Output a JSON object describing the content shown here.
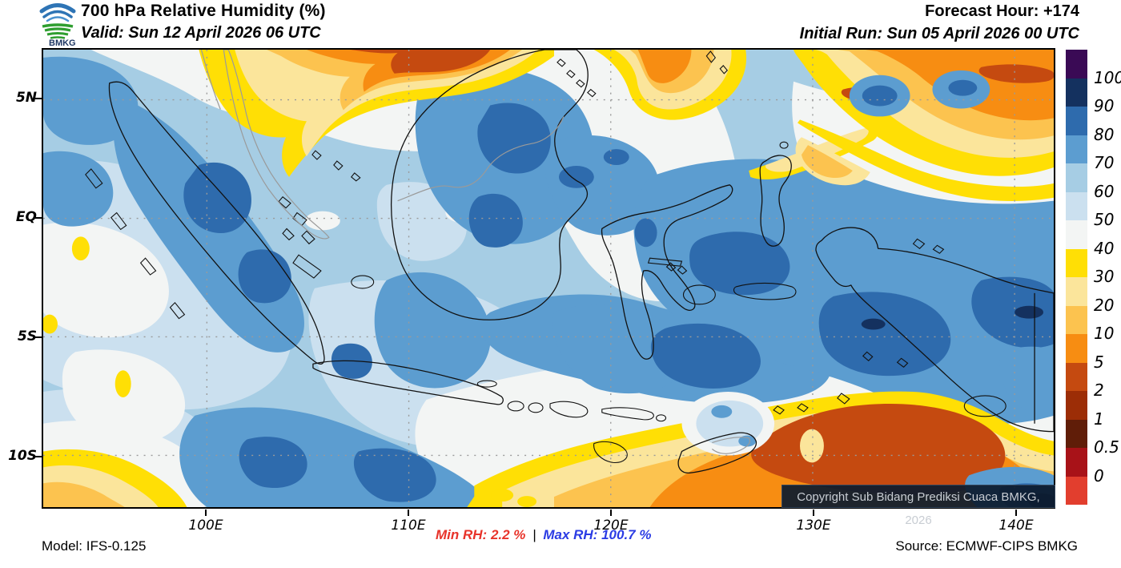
{
  "header": {
    "logo_text": "BMKG",
    "title": "700 hPa Relative Humidity (%)",
    "valid": "Valid: Sun 12 April 2026 06 UTC",
    "forecast_hour": "Forecast Hour: +174",
    "initial_run": "Initial Run: Sun 05 April 2026 00 UTC"
  },
  "map": {
    "copyright": "Copyright Sub Bidang Prediksi Cuaca BMKG, 2026"
  },
  "axes": {
    "x": [
      "100E",
      "110E",
      "120E",
      "130E",
      "140E"
    ],
    "y": [
      "5N",
      "EQ",
      "5S",
      "10S"
    ]
  },
  "colorbar": {
    "labels": [
      "100",
      "90",
      "80",
      "70",
      "60",
      "50",
      "40",
      "30",
      "20",
      "10",
      "5",
      "2",
      "1",
      "0.5",
      "0"
    ],
    "colors": [
      "#3A0A55",
      "#14315F",
      "#2E6BAD",
      "#5C9DD0",
      "#A6CDE4",
      "#CBE0EF",
      "#F3F5F4",
      "#FFDF05",
      "#FBE59B",
      "#FCC34F",
      "#F78D12",
      "#C54A10",
      "#9C2D06",
      "#601D08",
      "#A81218",
      "#E23E2E"
    ]
  },
  "footer": {
    "model": "Model: IFS-0.125",
    "min_label": "Min RH:",
    "min_value": "2.2 %",
    "separator": "|",
    "max_label": "Max RH:",
    "max_value": "100.7 %",
    "source": "Source: ECMWF-CIPS BMKG"
  },
  "chart_data": {
    "type": "heatmap",
    "title": "700 hPa Relative Humidity (%)",
    "valid_time": "Sun 12 April 2026 06 UTC",
    "forecast_hour": "+174",
    "initial_run": "Sun 05 April 2026 00 UTC",
    "model": "IFS-0.125",
    "source": "ECMWF-CIPS BMKG",
    "min_rh_percent": 2.2,
    "max_rh_percent": 100.7,
    "region": "Indonesia",
    "x_axis": {
      "label": "longitude",
      "ticks": [
        "100E",
        "110E",
        "120E",
        "130E",
        "140E"
      ],
      "range": [
        "92E",
        "142E"
      ]
    },
    "y_axis": {
      "label": "latitude",
      "ticks": [
        "5N",
        "EQ",
        "5S",
        "10S"
      ],
      "range": [
        "12S",
        "7N"
      ]
    },
    "grid": true,
    "legend_position": "right",
    "colorbar_levels_percent": [
      0,
      0.5,
      1,
      2,
      5,
      10,
      20,
      30,
      40,
      50,
      60,
      70,
      80,
      90,
      100
    ],
    "colorbar_colors": [
      "#E23E2E",
      "#A81218",
      "#601D08",
      "#9C2D06",
      "#C54A10",
      "#F78D12",
      "#FCC34F",
      "#FBE59B",
      "#FFDF05",
      "#F3F5F4",
      "#CBE0EF",
      "#A6CDE4",
      "#5C9DD0",
      "#2E6BAD",
      "#14315F",
      "#3A0A55"
    ],
    "field_summary": "Mostly 60-80% RH (blues) across Indonesia; dry bands (<40%, yellow-orange) along the northern edge near 5-7N, a dry swirl in the NE corner, a large very dry core (2-5%) south of Nusa Tenggara near 10-12S 125-138E, and a small dry arc in the SW corner; moistest cores 80-100% over Papua, the Banda Sea and south of Java."
  }
}
